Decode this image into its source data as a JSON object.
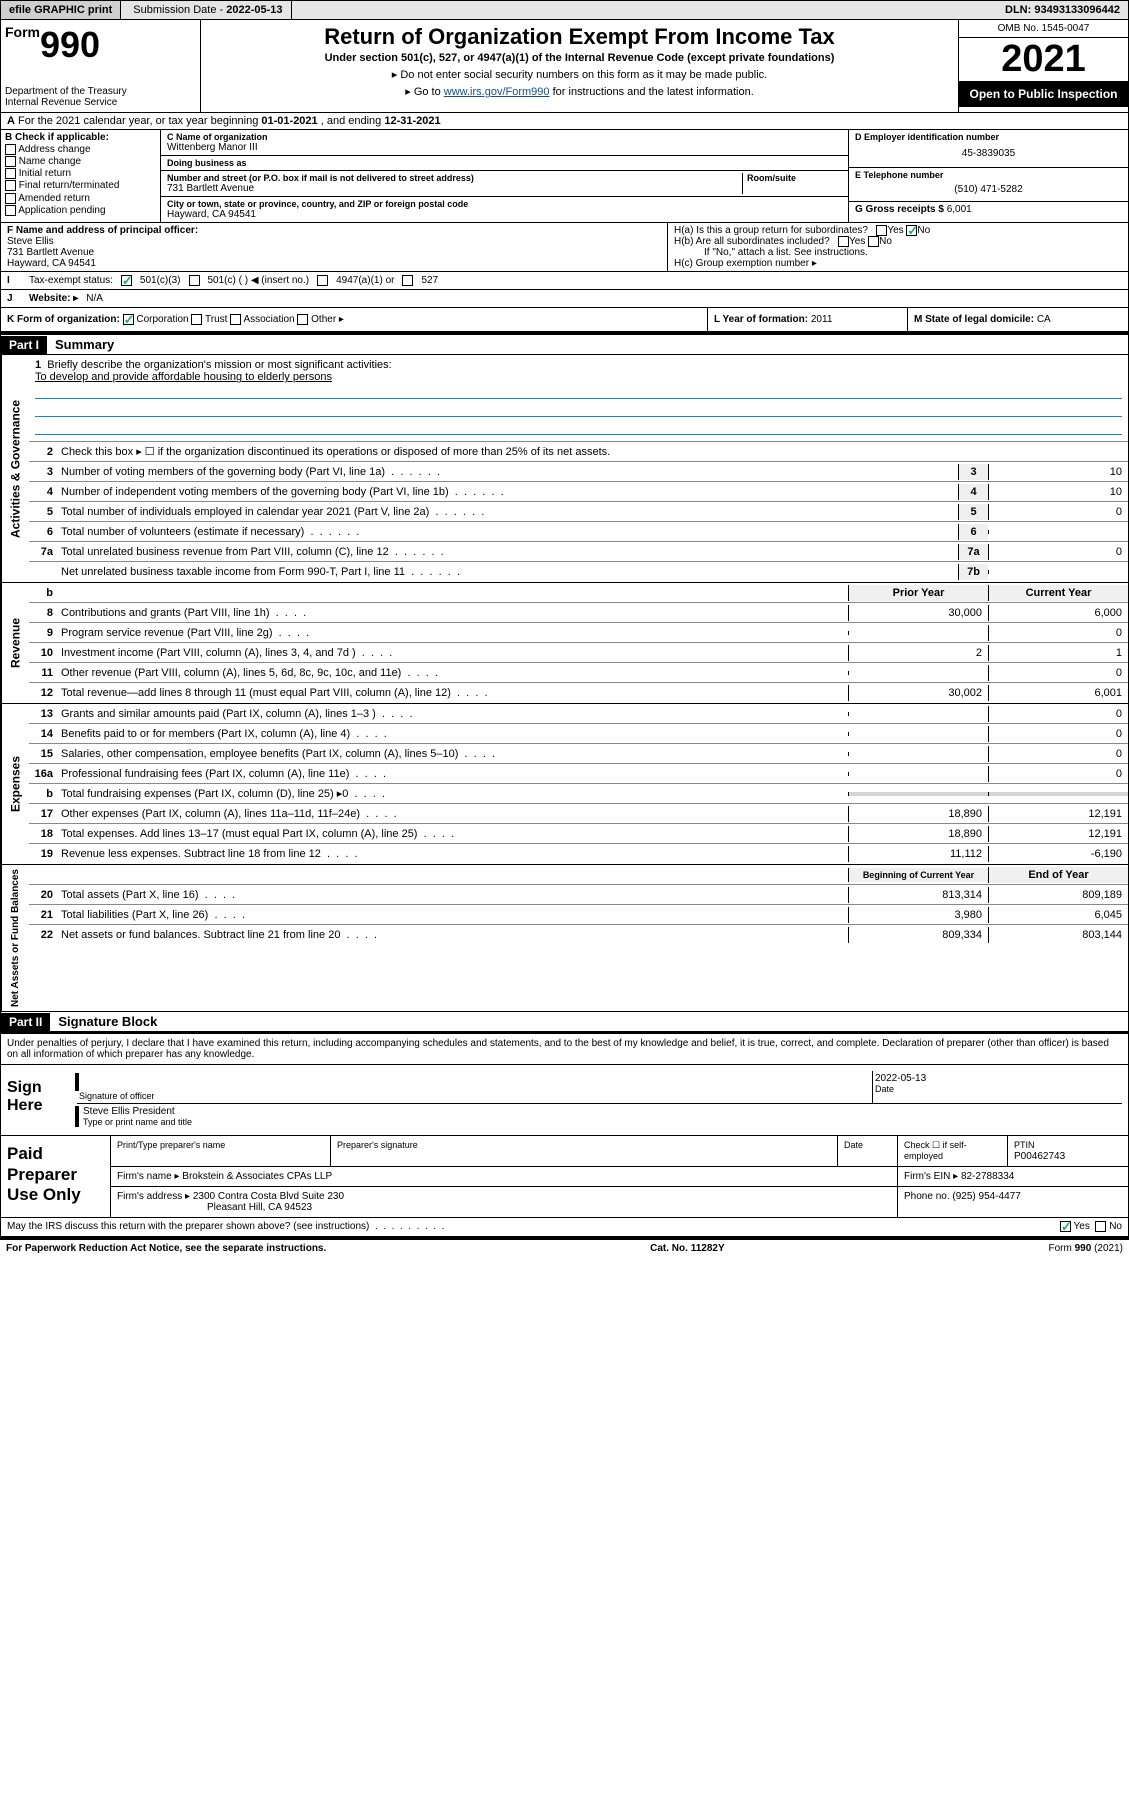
{
  "topbar": {
    "efile": "efile GRAPHIC print",
    "submission_label": "Submission Date -",
    "submission_date": "2022-05-13",
    "dln_label": "DLN:",
    "dln": "93493133096442"
  },
  "header": {
    "form_word": "Form",
    "form_num": "990",
    "dept": "Department of the Treasury\nInternal Revenue Service",
    "title": "Return of Organization Exempt From Income Tax",
    "subtitle": "Under section 501(c), 527, or 4947(a)(1) of the Internal Revenue Code (except private foundations)",
    "note1": "Do not enter social security numbers on this form as it may be made public.",
    "note2_pre": "Go to ",
    "note2_link": "www.irs.gov/Form990",
    "note2_post": " for instructions and the latest information.",
    "omb": "OMB No. 1545-0047",
    "year": "2021",
    "inspect": "Open to Public Inspection"
  },
  "line_a": {
    "text": "For the 2021 calendar year, or tax year beginning ",
    "begin": "01-01-2021",
    "mid": " , and ending ",
    "end": "12-31-2021"
  },
  "col_b": {
    "label": "B Check if applicable:",
    "items": [
      "Address change",
      "Name change",
      "Initial return",
      "Final return/terminated",
      "Amended return",
      "Application pending"
    ]
  },
  "col_c": {
    "name_label": "C Name of organization",
    "name": "Wittenberg Manor III",
    "dba_label": "Doing business as",
    "dba": "",
    "addr_label": "Number and street (or P.O. box if mail is not delivered to street address)",
    "room_label": "Room/suite",
    "addr": "731 Bartlett Avenue",
    "city_label": "City or town, state or province, country, and ZIP or foreign postal code",
    "city": "Hayward, CA  94541"
  },
  "col_d": {
    "ein_label": "D Employer identification number",
    "ein": "45-3839035",
    "phone_label": "E Telephone number",
    "phone": "(510) 471-5282",
    "gross_label": "G Gross receipts $",
    "gross": "6,001"
  },
  "block_f": {
    "f_label": "F Name and address of principal officer:",
    "f_name": "Steve Ellis",
    "f_addr1": "731 Bartlett Avenue",
    "f_addr2": "Hayward, CA  94541"
  },
  "block_h": {
    "ha": "H(a)  Is this a group return for subordinates?",
    "ha_no": "No",
    "hb": "H(b)  Are all subordinates included?",
    "hb_note": "If \"No,\" attach a list. See instructions.",
    "hc": "H(c)  Group exemption number ▸"
  },
  "row_i": {
    "label": "Tax-exempt status:",
    "opt1": "501(c)(3)",
    "opt2": "501(c) (  ) ◀ (insert no.)",
    "opt3": "4947(a)(1) or",
    "opt4": "527"
  },
  "row_j": {
    "label": "Website: ▸",
    "val": "N/A"
  },
  "row_k": {
    "label": "K Form of organization:",
    "opts": [
      "Corporation",
      "Trust",
      "Association",
      "Other ▸"
    ]
  },
  "row_l": {
    "label": "L Year of formation:",
    "val": "2011"
  },
  "row_m": {
    "label": "M State of legal domicile:",
    "val": "CA"
  },
  "part1": {
    "hdr": "Part I",
    "title": "Summary"
  },
  "sections": {
    "gov": "Activities & Governance",
    "rev": "Revenue",
    "exp": "Expenses",
    "net": "Net Assets or Fund Balances"
  },
  "q1": {
    "num": "1",
    "text": "Briefly describe the organization's mission or most significant activities:",
    "mission": "To develop and provide affordable housing to elderly persons"
  },
  "q2": {
    "num": "2",
    "text": "Check this box ▸ ☐ if the organization discontinued its operations or disposed of more than 25% of its net assets."
  },
  "lines_gov": [
    {
      "n": "3",
      "d": "Number of voting members of the governing body (Part VI, line 1a)",
      "box": "3",
      "v": "10"
    },
    {
      "n": "4",
      "d": "Number of independent voting members of the governing body (Part VI, line 1b)",
      "box": "4",
      "v": "10"
    },
    {
      "n": "5",
      "d": "Total number of individuals employed in calendar year 2021 (Part V, line 2a)",
      "box": "5",
      "v": "0"
    },
    {
      "n": "6",
      "d": "Total number of volunteers (estimate if necessary)",
      "box": "6",
      "v": ""
    },
    {
      "n": "7a",
      "d": "Total unrelated business revenue from Part VIII, column (C), line 12",
      "box": "7a",
      "v": "0"
    },
    {
      "n": "",
      "d": "Net unrelated business taxable income from Form 990-T, Part I, line 11",
      "box": "7b",
      "v": ""
    }
  ],
  "col_hdrs": {
    "b": "b",
    "prior": "Prior Year",
    "curr": "Current Year"
  },
  "lines_rev": [
    {
      "n": "8",
      "d": "Contributions and grants (Part VIII, line 1h)",
      "p": "30,000",
      "c": "6,000"
    },
    {
      "n": "9",
      "d": "Program service revenue (Part VIII, line 2g)",
      "p": "",
      "c": "0"
    },
    {
      "n": "10",
      "d": "Investment income (Part VIII, column (A), lines 3, 4, and 7d )",
      "p": "2",
      "c": "1"
    },
    {
      "n": "11",
      "d": "Other revenue (Part VIII, column (A), lines 5, 6d, 8c, 9c, 10c, and 11e)",
      "p": "",
      "c": "0"
    },
    {
      "n": "12",
      "d": "Total revenue—add lines 8 through 11 (must equal Part VIII, column (A), line 12)",
      "p": "30,002",
      "c": "6,001"
    }
  ],
  "lines_exp": [
    {
      "n": "13",
      "d": "Grants and similar amounts paid (Part IX, column (A), lines 1–3 )",
      "p": "",
      "c": "0"
    },
    {
      "n": "14",
      "d": "Benefits paid to or for members (Part IX, column (A), line 4)",
      "p": "",
      "c": "0"
    },
    {
      "n": "15",
      "d": "Salaries, other compensation, employee benefits (Part IX, column (A), lines 5–10)",
      "p": "",
      "c": "0"
    },
    {
      "n": "16a",
      "d": "Professional fundraising fees (Part IX, column (A), line 11e)",
      "p": "",
      "c": "0"
    },
    {
      "n": "b",
      "d": "Total fundraising expenses (Part IX, column (D), line 25) ▸0",
      "p": "GREY",
      "c": "GREY"
    },
    {
      "n": "17",
      "d": "Other expenses (Part IX, column (A), lines 11a–11d, 11f–24e)",
      "p": "18,890",
      "c": "12,191"
    },
    {
      "n": "18",
      "d": "Total expenses. Add lines 13–17 (must equal Part IX, column (A), line 25)",
      "p": "18,890",
      "c": "12,191"
    },
    {
      "n": "19",
      "d": "Revenue less expenses. Subtract line 18 from line 12",
      "p": "11,112",
      "c": "-6,190"
    }
  ],
  "net_hdrs": {
    "begin": "Beginning of Current Year",
    "end": "End of Year"
  },
  "lines_net": [
    {
      "n": "20",
      "d": "Total assets (Part X, line 16)",
      "p": "813,314",
      "c": "809,189"
    },
    {
      "n": "21",
      "d": "Total liabilities (Part X, line 26)",
      "p": "3,980",
      "c": "6,045"
    },
    {
      "n": "22",
      "d": "Net assets or fund balances. Subtract line 21 from line 20",
      "p": "809,334",
      "c": "803,144"
    }
  ],
  "part2": {
    "hdr": "Part II",
    "title": "Signature Block"
  },
  "penalty": "Under penalties of perjury, I declare that I have examined this return, including accompanying schedules and statements, and to the best of my knowledge and belief, it is true, correct, and complete. Declaration of preparer (other than officer) is based on all information of which preparer has any knowledge.",
  "sign": {
    "here": "Sign Here",
    "sig_label": "Signature of officer",
    "date_label": "Date",
    "date": "2022-05-13",
    "name": "Steve Ellis President",
    "name_label": "Type or print name and title"
  },
  "paid": {
    "hdr": "Paid Preparer Use Only",
    "c1": "Print/Type preparer's name",
    "c2": "Preparer's signature",
    "c3": "Date",
    "c4a": "Check ☐ if self-employed",
    "c4b_label": "PTIN",
    "c4b": "P00462743",
    "firm_label": "Firm's name ▸",
    "firm": "Brokstein & Associates CPAs LLP",
    "ein_label": "Firm's EIN ▸",
    "ein": "82-2788334",
    "addr_label": "Firm's address ▸",
    "addr1": "2300 Contra Costa Blvd Suite 230",
    "addr2": "Pleasant Hill, CA  94523",
    "phone_label": "Phone no.",
    "phone": "(925) 954-4477"
  },
  "discuss": {
    "q": "May the IRS discuss this return with the preparer shown above? (see instructions)",
    "yes": "Yes",
    "no": "No"
  },
  "footer": {
    "paperwork": "For Paperwork Reduction Act Notice, see the separate instructions.",
    "cat": "Cat. No. 11282Y",
    "form": "Form 990 (2021)"
  }
}
